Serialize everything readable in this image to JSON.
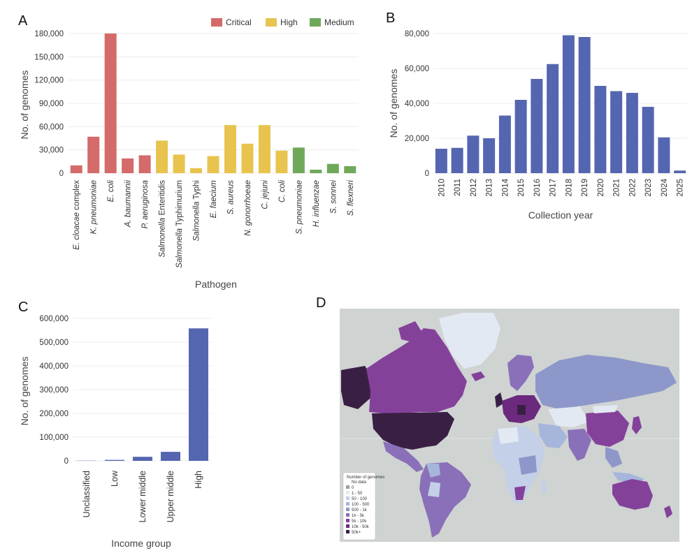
{
  "colors": {
    "critical": "#d46a6a",
    "high": "#e8c44f",
    "medium": "#70a85a",
    "bar": "#5566b0",
    "map_ocean": "#cfd3d2",
    "map_scale": [
      "#9e9e9e",
      "#e3e9f3",
      "#c3d0e8",
      "#a6b6db",
      "#8d97c9",
      "#8a70b8",
      "#84419a",
      "#6b2a7e",
      "#3a1f45"
    ]
  },
  "panels": {
    "A": {
      "label": "A"
    },
    "B": {
      "label": "B"
    },
    "C": {
      "label": "C"
    },
    "D": {
      "label": "D"
    }
  },
  "chart_data": [
    {
      "panel": "A",
      "type": "bar",
      "xlabel": "Pathogen",
      "ylabel": "No. of genomes",
      "ylim": [
        0,
        180000
      ],
      "yticks": [
        "0",
        "30,000",
        "60,000",
        "90,000",
        "120,000",
        "150,000",
        "180,000"
      ],
      "legend": [
        {
          "name": "Critical",
          "color_key": "critical"
        },
        {
          "name": "High",
          "color_key": "high"
        },
        {
          "name": "Medium",
          "color_key": "medium"
        }
      ],
      "legend_position": "top-right",
      "categories": [
        {
          "label": "E. cloacae complex",
          "italic": "E. cloacae",
          "rest": " complex",
          "value": 10000,
          "group": "critical"
        },
        {
          "label": "K. pneumoniae",
          "italic": "K. pneumoniae",
          "rest": "",
          "value": 47000,
          "group": "critical"
        },
        {
          "label": "E. coli",
          "italic": "E. coli",
          "rest": "",
          "value": 180000,
          "group": "critical"
        },
        {
          "label": "A. baumannii",
          "italic": "A. baumannii",
          "rest": "",
          "value": 19000,
          "group": "critical"
        },
        {
          "label": "P. aeruginosa",
          "italic": "P. aeruginosa",
          "rest": "",
          "value": 23000,
          "group": "critical"
        },
        {
          "label": "Salmonella Enteritidis",
          "italic": "Salmonella",
          "rest": " Enteritidis",
          "value": 42000,
          "group": "high"
        },
        {
          "label": "Salmonella Typhimurium",
          "italic": "Salmonella",
          "rest": " Typhimurium",
          "value": 24000,
          "group": "high"
        },
        {
          "label": "Salmonella Typhi",
          "italic": "Salmonella",
          "rest": " Typhi",
          "value": 6500,
          "group": "high"
        },
        {
          "label": "E. faecium",
          "italic": "E. faecium",
          "rest": "",
          "value": 22000,
          "group": "high"
        },
        {
          "label": "S. aureus",
          "italic": "S. aureus",
          "rest": "",
          "value": 62000,
          "group": "high"
        },
        {
          "label": "N. gonorrhoeae",
          "italic": "N. gonorrhoeae",
          "rest": "",
          "value": 38000,
          "group": "high"
        },
        {
          "label": "C. jejuni",
          "italic": "C. jejuni",
          "rest": "",
          "value": 62000,
          "group": "high"
        },
        {
          "label": "C. coli",
          "italic": "C. coli",
          "rest": "",
          "value": 29000,
          "group": "high"
        },
        {
          "label": "S. pneumoniae",
          "italic": "S. pneumoniae",
          "rest": "",
          "value": 33000,
          "group": "medium"
        },
        {
          "label": "H. influenzae",
          "italic": "H. influenzae",
          "rest": "",
          "value": 4500,
          "group": "medium"
        },
        {
          "label": "S. sonnei",
          "italic": "S. sonnei",
          "rest": "",
          "value": 12000,
          "group": "medium"
        },
        {
          "label": "S. flexneri",
          "italic": "S. flexneri",
          "rest": "",
          "value": 9000,
          "group": "medium"
        }
      ]
    },
    {
      "panel": "B",
      "type": "bar",
      "xlabel": "Collection year",
      "ylabel": "No. of genomes",
      "ylim": [
        0,
        80000
      ],
      "yticks": [
        "0",
        "20,000",
        "40,000",
        "60,000",
        "80,000"
      ],
      "categories": [
        "2010",
        "2011",
        "2012",
        "2013",
        "2014",
        "2015",
        "2016",
        "2017",
        "2018",
        "2019",
        "2020",
        "2021",
        "2022",
        "2023",
        "2024",
        "2025"
      ],
      "values": [
        14000,
        14500,
        21500,
        20000,
        33000,
        42000,
        54000,
        62500,
        79000,
        78000,
        50000,
        47000,
        46000,
        38000,
        20500,
        1500
      ]
    },
    {
      "panel": "C",
      "type": "bar",
      "xlabel": "Income group",
      "ylabel": "No. of genomes",
      "ylim": [
        0,
        600000
      ],
      "yticks": [
        "0",
        "100,000",
        "200,000",
        "300,000",
        "400,000",
        "500,000",
        "600,000"
      ],
      "categories": [
        "Unclassified",
        "Low",
        "Lower middle",
        "Upper middle",
        "High"
      ],
      "values": [
        1000,
        4000,
        17000,
        38000,
        558000
      ]
    }
  ],
  "map": {
    "legend_title": "Number of genomes",
    "legend_items": [
      "No data",
      "0",
      "1 - 50",
      "50 - 100",
      "100 - 500",
      "500 - 1k",
      "1k - 5k",
      "5k - 10k",
      "10k - 50k",
      "50k+"
    ]
  }
}
